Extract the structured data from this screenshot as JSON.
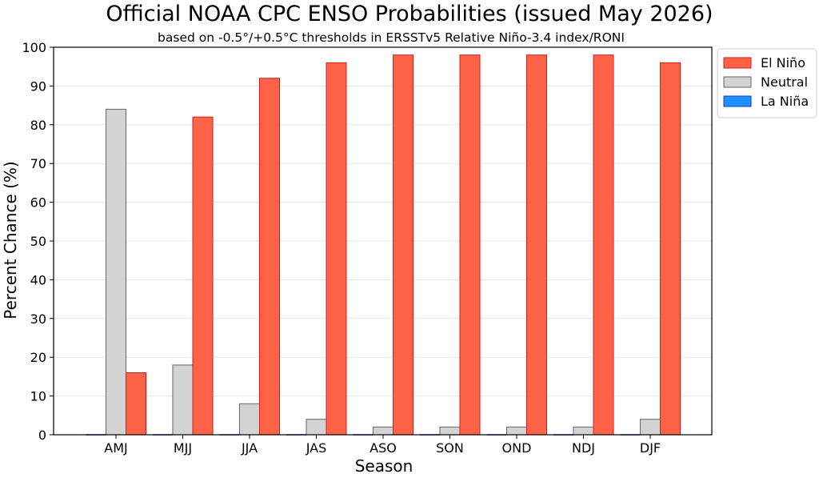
{
  "chart_data": {
    "type": "bar",
    "title": "Official NOAA CPC ENSO Probabilities (issued May 2026)",
    "subtitle": "based on -0.5°/+0.5°C thresholds in ERSSTv5 Relative Niño-3.4 index/RONI",
    "xlabel": "Season",
    "ylabel": "Percent Chance (%)",
    "ylim": [
      0,
      100
    ],
    "yticks": [
      0,
      10,
      20,
      30,
      40,
      50,
      60,
      70,
      80,
      90,
      100
    ],
    "grid": "y",
    "legend_position": "top-right",
    "categories": [
      "AMJ",
      "MJJ",
      "JJA",
      "JAS",
      "ASO",
      "SON",
      "OND",
      "NDJ",
      "DJF"
    ],
    "series": [
      {
        "name": "La Niña",
        "color": "#1f8fff",
        "edge": "#1a3fbf",
        "values": [
          0,
          0,
          0,
          0,
          0,
          0,
          0,
          0,
          0
        ]
      },
      {
        "name": "Neutral",
        "color": "#d3d3d3",
        "edge": "#666666",
        "values": [
          84,
          18,
          8,
          4,
          2,
          2,
          2,
          2,
          4
        ]
      },
      {
        "name": "El Niño",
        "color": "#ff6347",
        "edge": "#cc1f1f",
        "values": [
          16,
          82,
          92,
          96,
          98,
          98,
          98,
          98,
          96
        ]
      }
    ],
    "legend_order": [
      "El Niño",
      "Neutral",
      "La Niña"
    ]
  }
}
